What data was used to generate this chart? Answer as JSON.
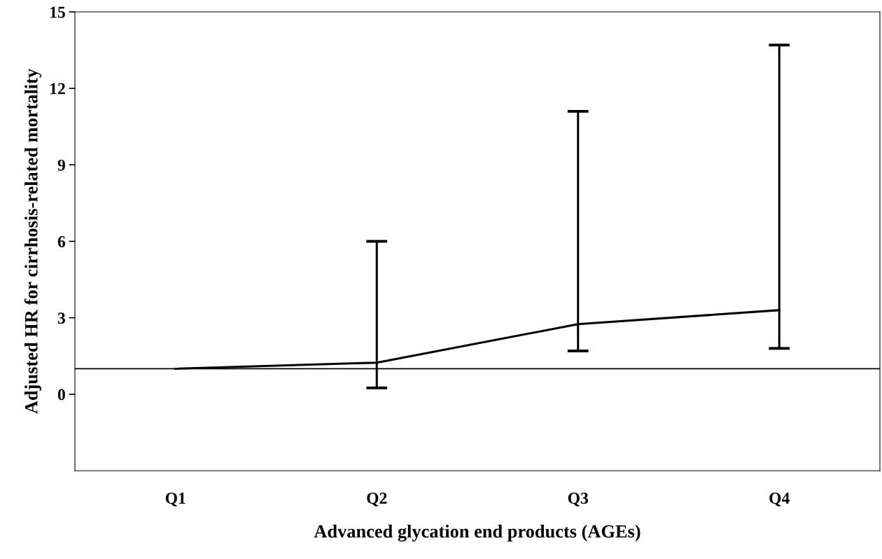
{
  "chart_data": {
    "type": "line",
    "xlabel": "Advanced glycation end products (AGEs)",
    "ylabel": "Adjusted HR for cirrhosis-related mortality",
    "categories": [
      "Q1",
      "Q2",
      "Q3",
      "Q4"
    ],
    "values": [
      1.0,
      1.24,
      2.75,
      3.3
    ],
    "errors": [
      null,
      [
        0.25,
        6.0
      ],
      [
        1.7,
        11.1
      ],
      [
        1.8,
        13.7
      ]
    ],
    "color": "#000000",
    "ylim": [
      -3,
      15
    ],
    "yticks": [
      0,
      3,
      6,
      9,
      12,
      15
    ],
    "ref_lines": [
      {
        "axis": "y",
        "value": 1,
        "color": "#000000"
      }
    ],
    "grid": false,
    "legend": false,
    "marker": "none",
    "line_style": "solid"
  }
}
